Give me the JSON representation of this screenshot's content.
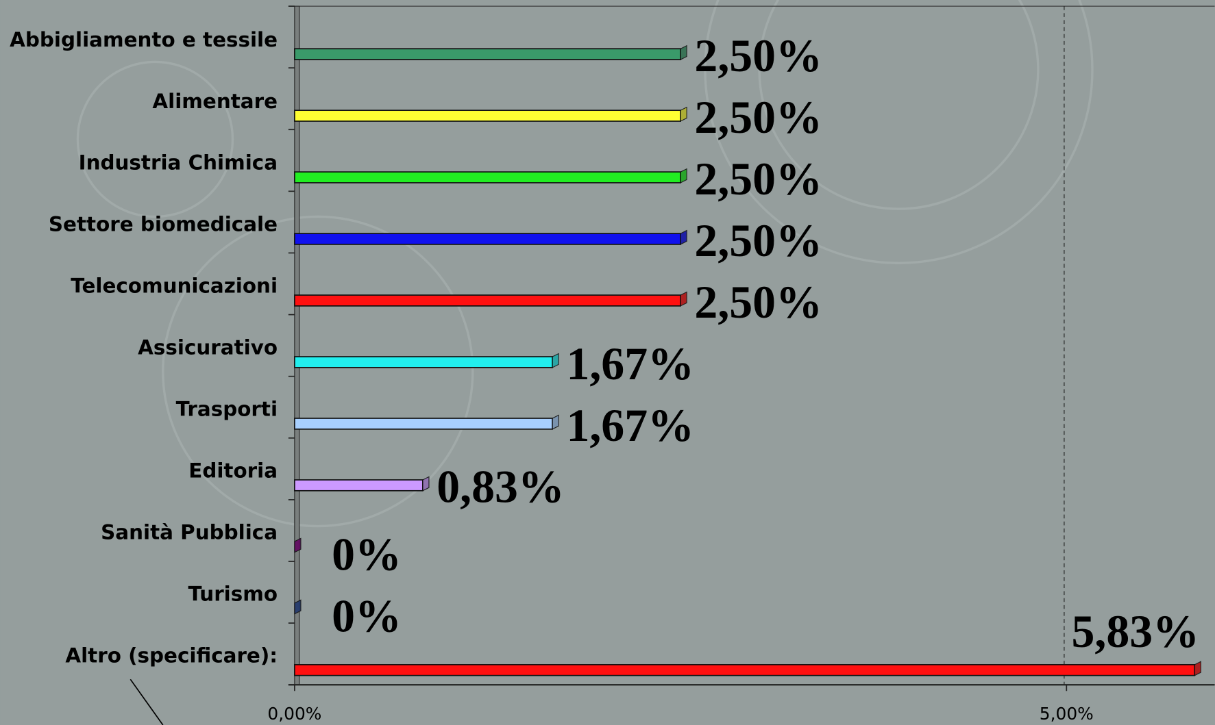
{
  "chart_data": {
    "type": "bar",
    "orientation": "horizontal",
    "categories": [
      "Abbigliamento e tessile",
      "Alimentare",
      "Industria Chimica",
      "Settore biomedicale",
      "Telecomunicazioni",
      "Assicurativo",
      "Trasporti",
      "Editoria",
      "Sanità Pubblica",
      "Turismo",
      "Altro (specificare):"
    ],
    "values": [
      2.5,
      2.5,
      2.5,
      2.5,
      2.5,
      1.67,
      1.67,
      0.83,
      0,
      0,
      5.83
    ],
    "value_labels": [
      "2,50%",
      "2,50%",
      "2,50%",
      "2,50%",
      "2,50%",
      "1,67%",
      "1,67%",
      "0,83%",
      "0%",
      "0%",
      "5,83%"
    ],
    "colors": [
      "#3a9a6a",
      "#ffff33",
      "#22ee22",
      "#1010ee",
      "#ff1010",
      "#22eeee",
      "#a8d0ff",
      "#cc99ff",
      "#880088",
      "#2a4a9a",
      "#ff1010"
    ],
    "xlim": [
      0,
      5.96
    ],
    "xticks": [
      {
        "value": 0,
        "label": "0,00%"
      },
      {
        "value": 5,
        "label": "5,00%"
      }
    ],
    "grid": true
  }
}
